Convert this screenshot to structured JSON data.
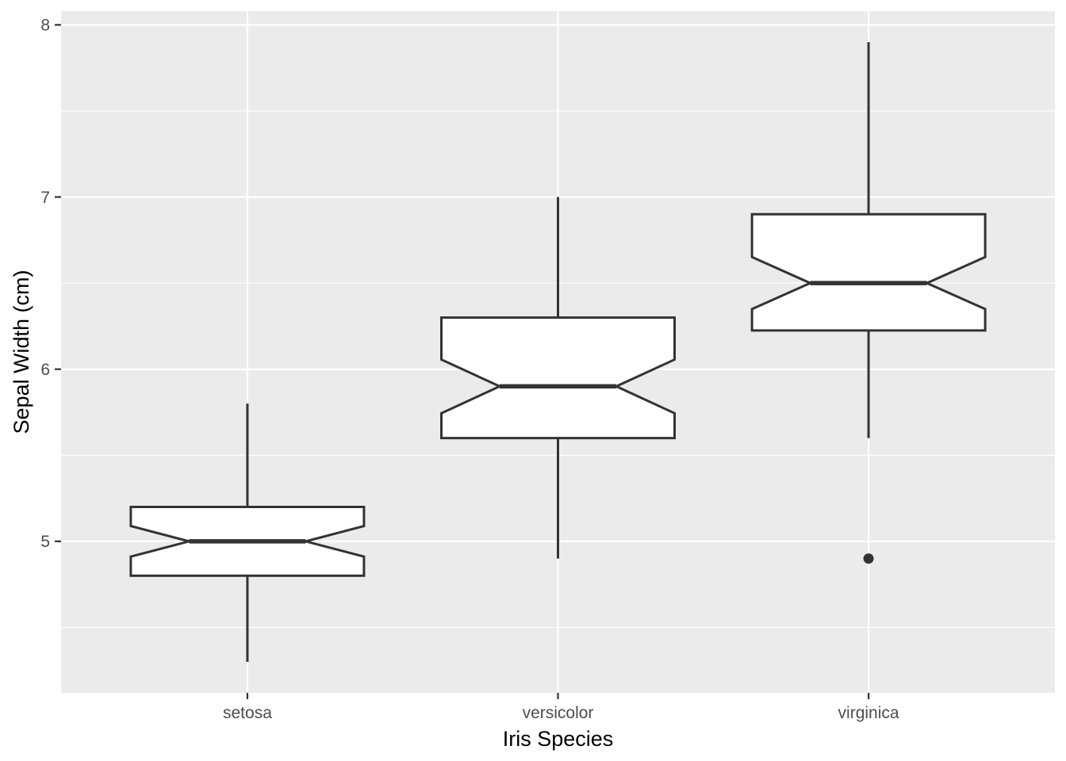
{
  "chart_data": {
    "type": "boxplot",
    "notched": true,
    "title": "",
    "xlabel": "Iris Species",
    "ylabel": "Sepal Width (cm)",
    "categories": [
      "setosa",
      "versicolor",
      "virginica"
    ],
    "series": [
      {
        "category": "setosa",
        "whisker_low": 4.3,
        "q1": 4.8,
        "median": 5.0,
        "q3": 5.2,
        "whisker_high": 5.8,
        "notch_low": 4.911,
        "notch_high": 5.089,
        "outliers": []
      },
      {
        "category": "versicolor",
        "whisker_low": 4.9,
        "q1": 5.6,
        "median": 5.9,
        "q3": 6.3,
        "whisker_high": 7.0,
        "notch_low": 5.744,
        "notch_high": 6.056,
        "outliers": []
      },
      {
        "category": "virginica",
        "whisker_low": 5.6,
        "q1": 6.225,
        "median": 6.5,
        "q3": 6.9,
        "whisker_high": 7.9,
        "notch_low": 6.349,
        "notch_high": 6.651,
        "outliers": [
          4.9
        ]
      }
    ],
    "ylim": [
      4.12,
      8.08
    ],
    "y_major_ticks": [
      5,
      6,
      7,
      8
    ],
    "y_minor_ticks": [
      4.5,
      5.5,
      6.5,
      7.5
    ],
    "grid": "on",
    "legend": "none",
    "style": {
      "figure_background": "#FFFFFF",
      "panel_background": "#EBEBEB",
      "grid_color": "#FFFFFF",
      "box_fill": "#FFFFFF",
      "line_color": "#333333",
      "tick_mark_color": "#333333",
      "axis_text_color": "#4D4D4D",
      "axis_title_color": "#000000"
    }
  }
}
